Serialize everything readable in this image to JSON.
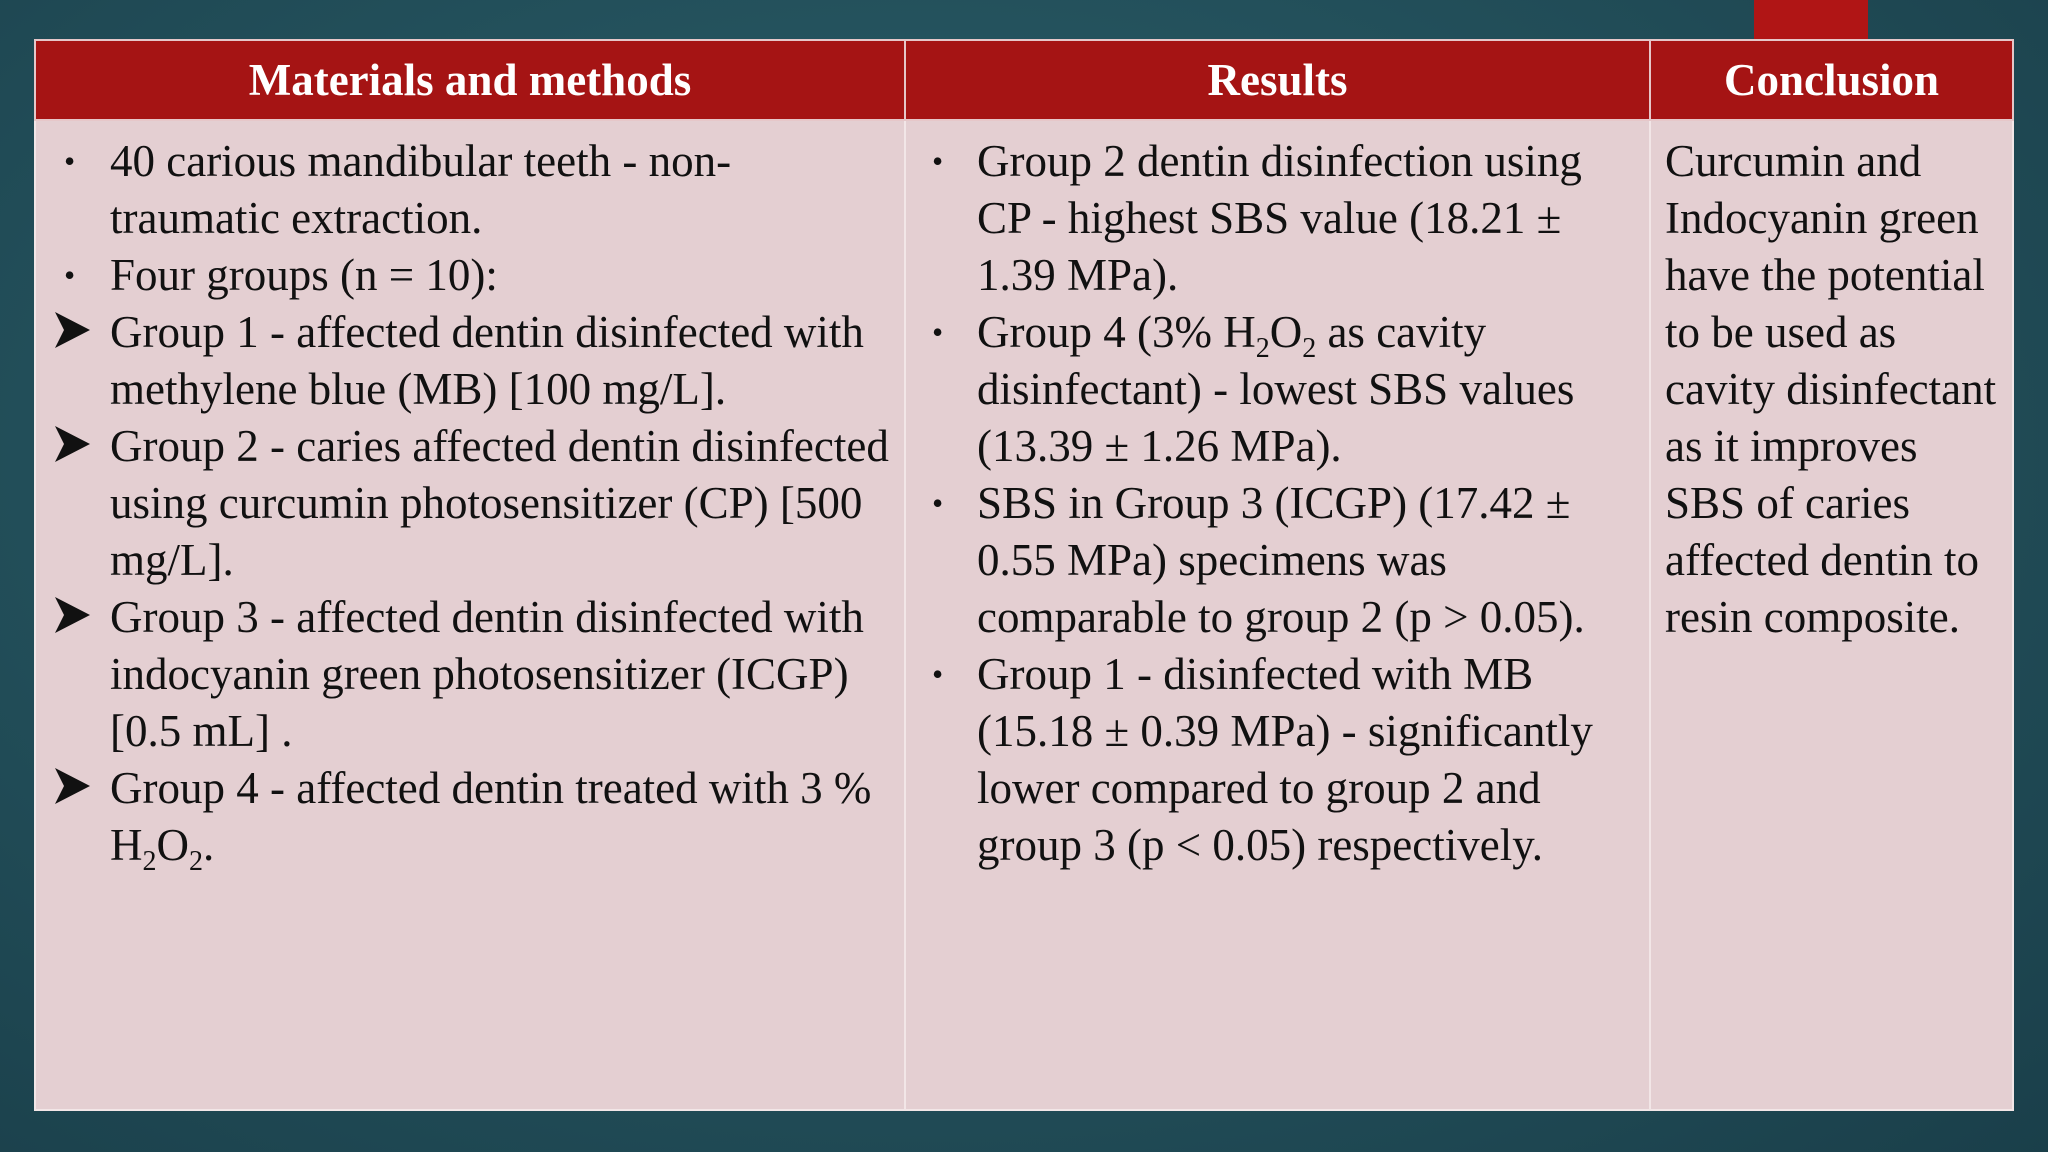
{
  "table": {
    "headers": {
      "methods": "Materials and methods",
      "results": "Results",
      "conclusion": "Conclusion"
    },
    "methods": {
      "items": [
        {
          "marker": "•",
          "text": "40 carious mandibular teeth - non-traumatic extraction."
        },
        {
          "marker": "•",
          "text": "Four groups (n = 10):"
        },
        {
          "marker": "arrow",
          "text": "Group 1 - affected dentin disinfected with methylene blue (MB) [100 mg/L]."
        },
        {
          "marker": "arrow",
          "text": "Group 2 - caries affected dentin disinfected using curcumin photosensitizer (CP) [500 mg/L]."
        },
        {
          "marker": "arrow",
          "text": "Group 3 - affected dentin disinfected with indocyanin green photosensitizer (ICGP) [0.5 mL] ."
        },
        {
          "marker": "arrow",
          "text_before": "Group 4 - affected dentin treated with 3 % H",
          "sub1": "2",
          "text_mid": "O",
          "sub2": "2",
          "text_after": "."
        }
      ]
    },
    "results": {
      "items": [
        {
          "marker": "•",
          "text": "Group 2 dentin disinfection using CP - highest SBS value (18.21 ± 1.39 MPa)."
        },
        {
          "marker": "•",
          "text_before": "Group 4 (3% H",
          "sub1": "2",
          "text_mid": "O",
          "sub2": "2",
          "text_after": " as cavity disinfectant) - lowest SBS values (13.39 ± 1.26 MPa)."
        },
        {
          "marker": "•",
          "text": "SBS in Group 3 (ICGP) (17.42 ± 0.55 MPa) specimens was comparable to group 2 (p > 0.05)."
        },
        {
          "marker": "•",
          "text": "Group 1 - disinfected with MB (15.18 ± 0.39 MPa) - significantly lower compared to group 2 and group 3 (p < 0.05) respectively."
        }
      ]
    },
    "conclusion": {
      "text": "Curcumin and Indocyanin green have the potential to be used as cavity disinfectant as it improves SBS of caries affected dentin to resin composite."
    }
  },
  "colors": {
    "header_bg": "#a51414",
    "header_text": "#ffffff",
    "cell_bg": "#e4cfd2",
    "accent": "#b01515",
    "background": "#24525d"
  },
  "icons": {
    "bullet": "bullet-dot-icon",
    "arrow": "arrow-bullet-icon"
  }
}
